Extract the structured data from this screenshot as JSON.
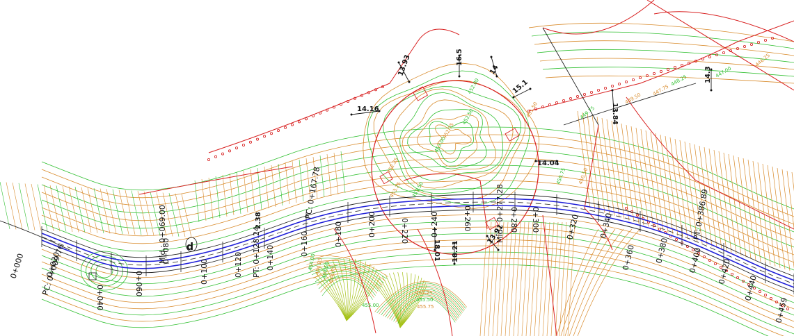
{
  "colors": {
    "background": "#ffffff",
    "alignment": "#1f1fd8",
    "centerline_dash": "#3a3a3a",
    "boundary": "#d81f1f",
    "contour_orange": "#d88a2a",
    "contour_green": "#2fbf2f",
    "contour_yellowgreen": "#a6c21a",
    "road_edge": "#222222"
  },
  "stations": [
    "0+000",
    "0+020",
    "0+040",
    "0+060",
    "0+080",
    "0+100",
    "0+120",
    "0+140",
    "0+160",
    "0+180",
    "0+200",
    "0+220",
    "0+240",
    "0+260",
    "0+280",
    "0+300",
    "0+320",
    "0+340",
    "0+360",
    "0+380",
    "0+400",
    "0+420",
    "0+440",
    "0+459"
  ],
  "special_points": [
    {
      "id": "pc1",
      "text": "PC: 0+009.76"
    },
    {
      "id": "mid1",
      "text": "Mid.: 0+069.00"
    },
    {
      "id": "pt1",
      "text": "PT: 0+128.24"
    },
    {
      "id": "pc2",
      "text": "PC: 0+167.78"
    },
    {
      "id": "mid2",
      "text": "Mid.: 0+277.28"
    },
    {
      "id": "pt2",
      "text": "PT: 0+386.89"
    }
  ],
  "dimensions": [
    "14.16",
    "13.93",
    "16.5",
    "14",
    "15.1",
    "14.04",
    "18.01",
    "13.91",
    "18.21",
    "13.84",
    "14.3",
    "2.38"
  ],
  "contour_labels": [
    "454.00",
    "454.25",
    "454.50",
    "454.75",
    "455.00",
    "455.25",
    "455.50",
    "455.75",
    "453.50",
    "453.25",
    "453.00",
    "452.75",
    "452.50",
    "452.25",
    "452.00",
    "451.50",
    "450.75",
    "450.50",
    "449.75",
    "449.50",
    "448.25",
    "447.75",
    "447.00",
    "446.25"
  ],
  "markers": [
    "d"
  ]
}
